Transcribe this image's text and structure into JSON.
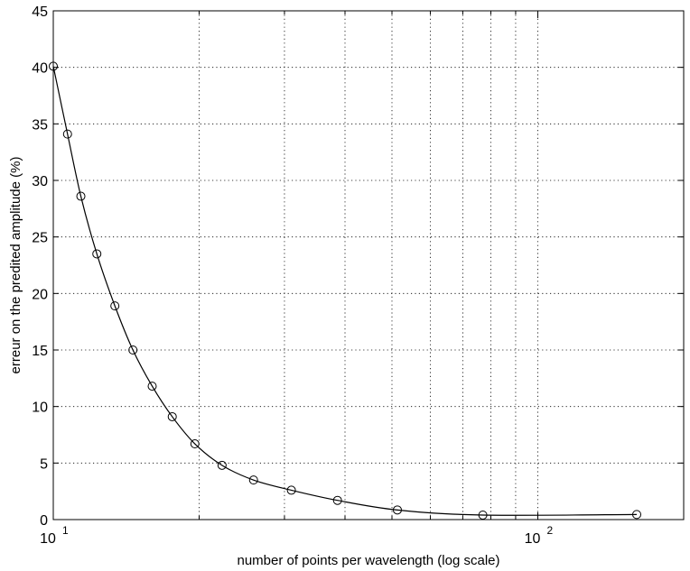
{
  "chart_data": {
    "type": "line",
    "title": "",
    "xlabel": "number of points per wavelength (log scale)",
    "ylabel": "erreur on the predited amplitude  (%)",
    "xscale": "log",
    "xlim": [
      10,
      200
    ],
    "ylim": [
      0,
      45
    ],
    "grid": true,
    "x_ticks": [
      {
        "value": 10,
        "base": "10",
        "exp": "1"
      },
      {
        "value": 100,
        "base": "10",
        "exp": "2"
      }
    ],
    "y_ticks": [
      0,
      5,
      10,
      15,
      20,
      25,
      30,
      35,
      40,
      45
    ],
    "series": [
      {
        "marker": "circle",
        "color": "#000000",
        "x": [
          10,
          10.7,
          11.4,
          12.3,
          13.4,
          14.6,
          16.0,
          17.6,
          19.6,
          22.3,
          25.9,
          31.0,
          38.6,
          51.3,
          77.0,
          160.0
        ],
        "y": [
          40.1,
          34.1,
          28.6,
          23.5,
          18.9,
          15.0,
          11.8,
          9.1,
          6.7,
          4.8,
          3.5,
          2.6,
          1.7,
          0.85,
          0.4,
          0.45
        ]
      }
    ]
  }
}
